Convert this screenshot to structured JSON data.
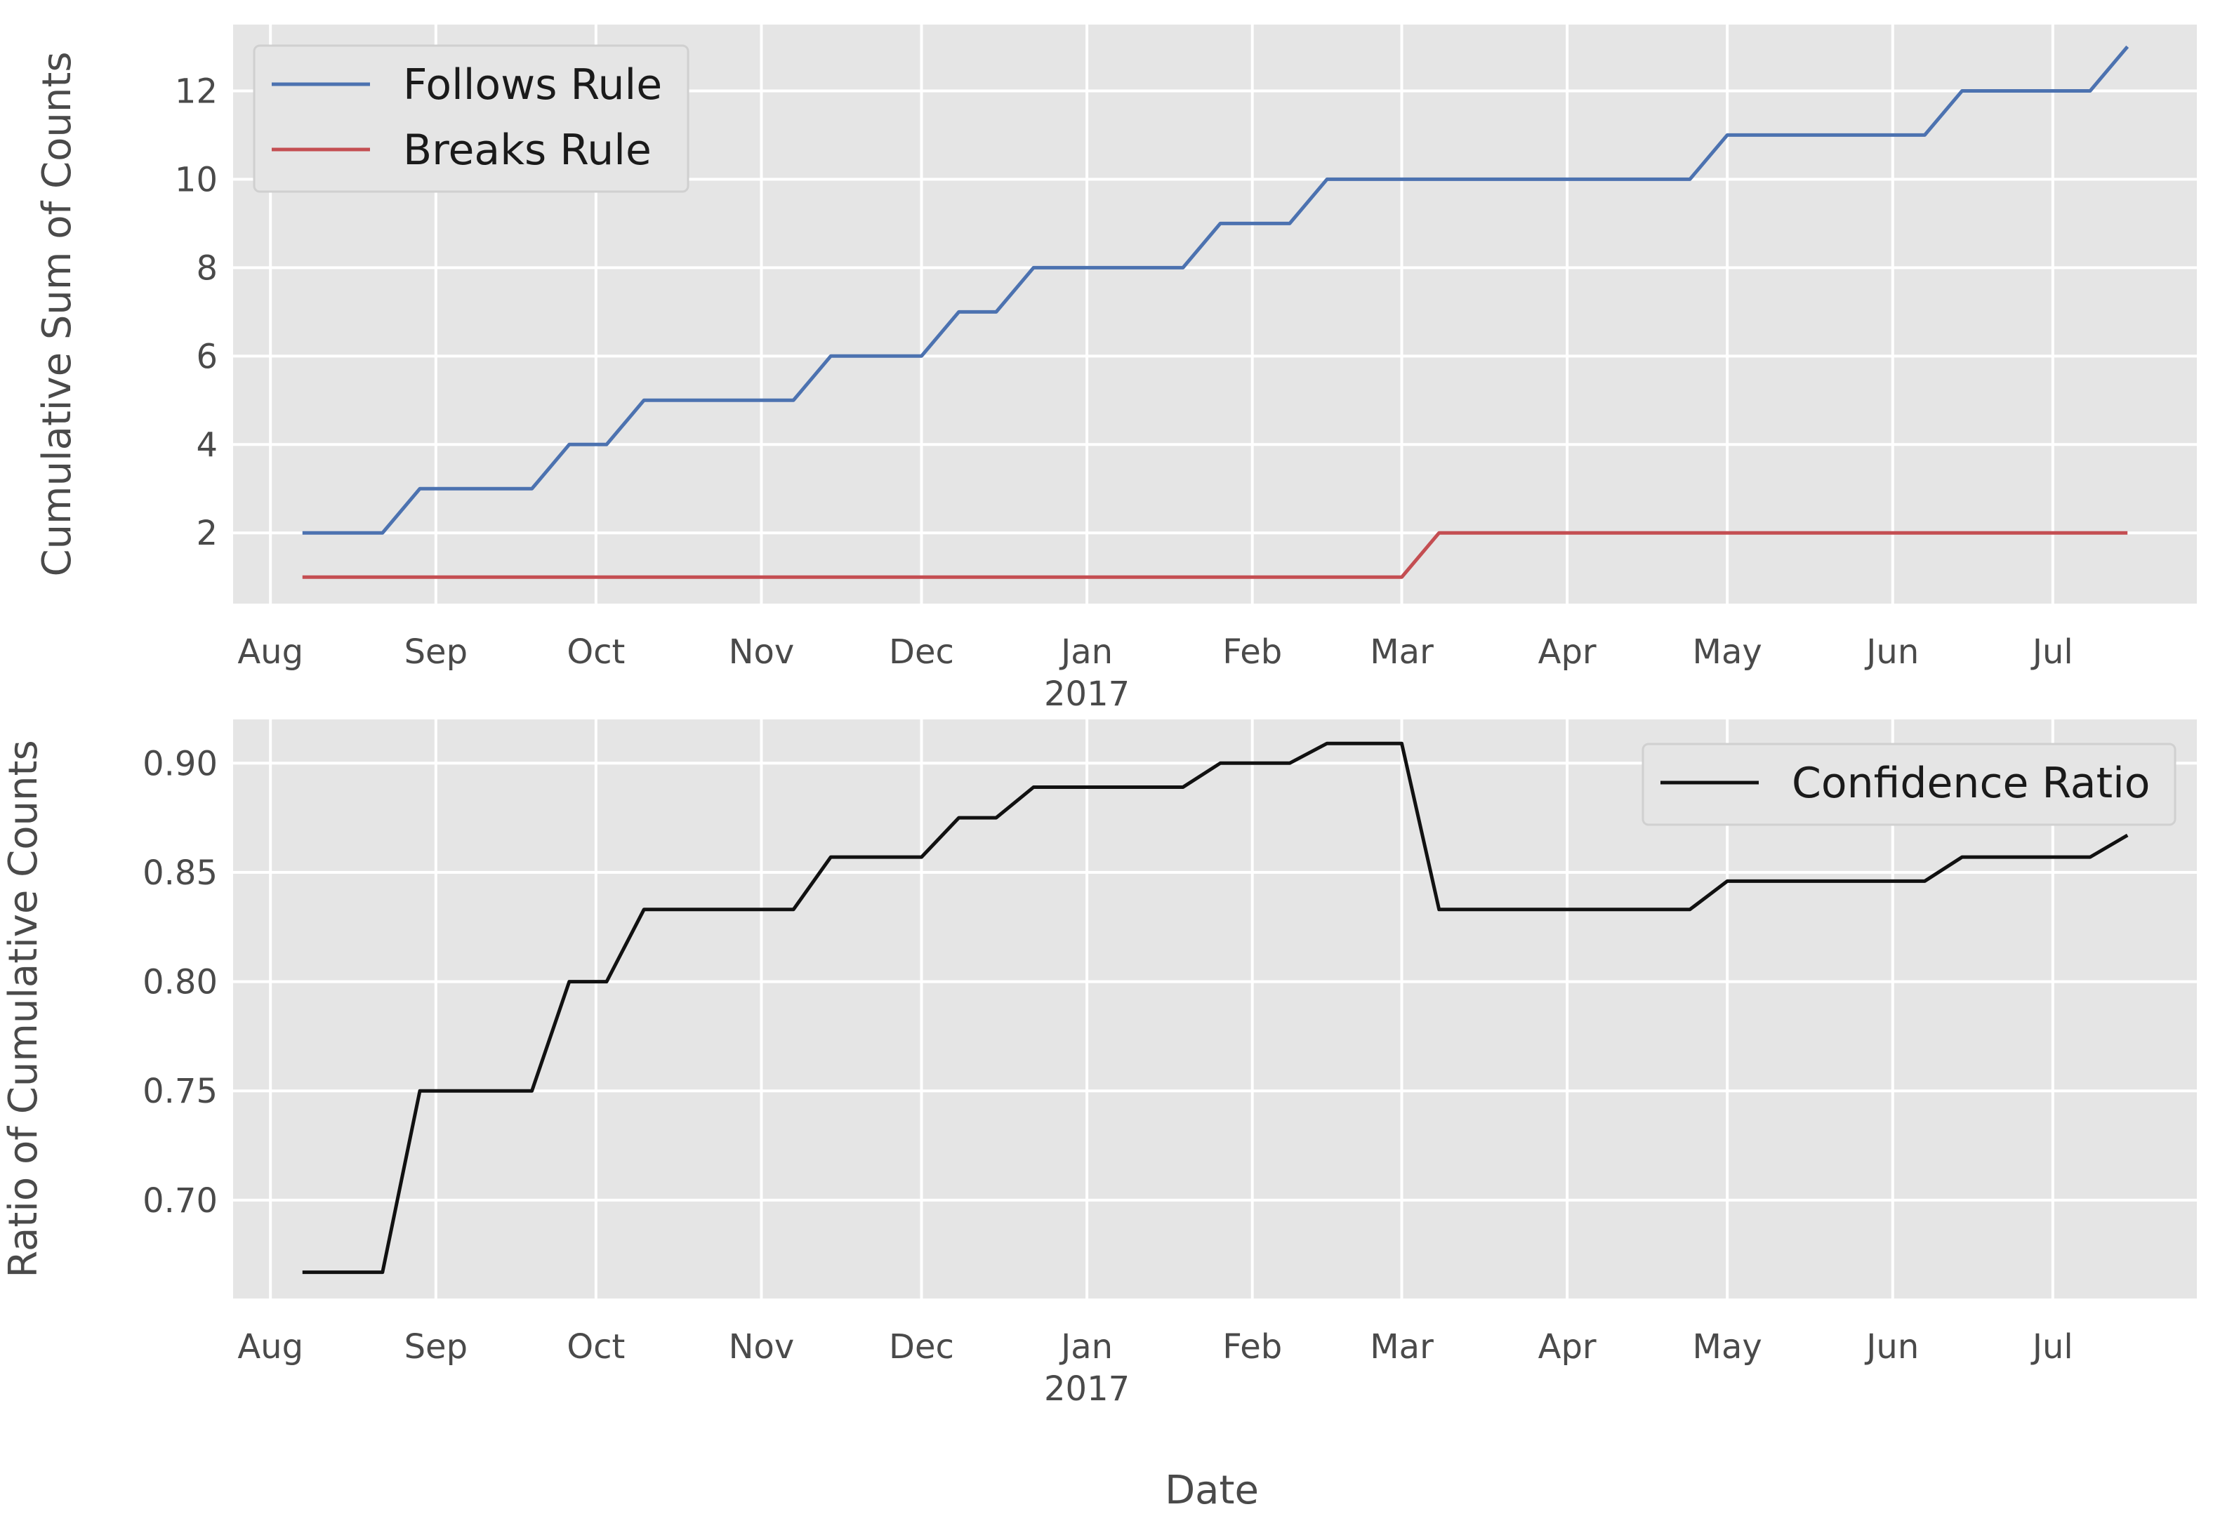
{
  "figure": {
    "xlabel": "Date"
  },
  "chart_data": [
    {
      "type": "line",
      "ylabel": "Cumulative Sum of Counts",
      "x_axis": "date",
      "xlim": [
        "2016-07-25",
        "2017-07-28"
      ],
      "ylim": [
        0.4,
        13.5
      ],
      "x_ticks": [
        {
          "date": "2016-08-01",
          "label": "Aug"
        },
        {
          "date": "2016-09-01",
          "label": "Sep"
        },
        {
          "date": "2016-10-01",
          "label": "Oct"
        },
        {
          "date": "2016-11-01",
          "label": "Nov"
        },
        {
          "date": "2016-12-01",
          "label": "Dec"
        },
        {
          "date": "2017-01-01",
          "label": "Jan"
        },
        {
          "date": "2017-02-01",
          "label": "Feb"
        },
        {
          "date": "2017-03-01",
          "label": "Mar"
        },
        {
          "date": "2017-04-01",
          "label": "Apr"
        },
        {
          "date": "2017-05-01",
          "label": "May"
        },
        {
          "date": "2017-06-01",
          "label": "Jun"
        },
        {
          "date": "2017-07-01",
          "label": "Jul"
        }
      ],
      "x_year_label": {
        "date": "2017-01-01",
        "label": "2017"
      },
      "y_ticks": [
        {
          "value": 2,
          "label": "2"
        },
        {
          "value": 4,
          "label": "4"
        },
        {
          "value": 6,
          "label": "6"
        },
        {
          "value": 8,
          "label": "8"
        },
        {
          "value": 10,
          "label": "10"
        },
        {
          "value": 12,
          "label": "12"
        }
      ],
      "grid": true,
      "legend": {
        "placement": "upper left"
      },
      "series": [
        {
          "name": "Follows Rule",
          "color": "#4c72b0",
          "points": [
            [
              "2016-08-07",
              2
            ],
            [
              "2016-08-22",
              2
            ],
            [
              "2016-08-29",
              3
            ],
            [
              "2016-09-19",
              3
            ],
            [
              "2016-09-26",
              4
            ],
            [
              "2016-10-03",
              4
            ],
            [
              "2016-10-10",
              5
            ],
            [
              "2016-11-07",
              5
            ],
            [
              "2016-11-14",
              6
            ],
            [
              "2016-12-01",
              6
            ],
            [
              "2016-12-08",
              7
            ],
            [
              "2016-12-15",
              7
            ],
            [
              "2016-12-22",
              8
            ],
            [
              "2017-01-19",
              8
            ],
            [
              "2017-01-26",
              9
            ],
            [
              "2017-02-08",
              9
            ],
            [
              "2017-02-15",
              10
            ],
            [
              "2017-04-24",
              10
            ],
            [
              "2017-05-01",
              11
            ],
            [
              "2017-06-07",
              11
            ],
            [
              "2017-06-14",
              12
            ],
            [
              "2017-07-08",
              12
            ],
            [
              "2017-07-15",
              13
            ]
          ]
        },
        {
          "name": "Breaks Rule",
          "color": "#c44e52",
          "points": [
            [
              "2016-08-07",
              1
            ],
            [
              "2017-03-01",
              1
            ],
            [
              "2017-03-08",
              2
            ],
            [
              "2017-07-15",
              2
            ]
          ]
        }
      ]
    },
    {
      "type": "line",
      "ylabel": "Ratio of Cumulative Counts",
      "x_axis": "date",
      "xlim": [
        "2016-07-25",
        "2017-07-28"
      ],
      "ylim": [
        0.655,
        0.92
      ],
      "x_ticks": [
        {
          "date": "2016-08-01",
          "label": "Aug"
        },
        {
          "date": "2016-09-01",
          "label": "Sep"
        },
        {
          "date": "2016-10-01",
          "label": "Oct"
        },
        {
          "date": "2016-11-01",
          "label": "Nov"
        },
        {
          "date": "2016-12-01",
          "label": "Dec"
        },
        {
          "date": "2017-01-01",
          "label": "Jan"
        },
        {
          "date": "2017-02-01",
          "label": "Feb"
        },
        {
          "date": "2017-03-01",
          "label": "Mar"
        },
        {
          "date": "2017-04-01",
          "label": "Apr"
        },
        {
          "date": "2017-05-01",
          "label": "May"
        },
        {
          "date": "2017-06-01",
          "label": "Jun"
        },
        {
          "date": "2017-07-01",
          "label": "Jul"
        }
      ],
      "x_year_label": {
        "date": "2017-01-01",
        "label": "2017"
      },
      "y_ticks": [
        {
          "value": 0.7,
          "label": "0.70"
        },
        {
          "value": 0.75,
          "label": "0.75"
        },
        {
          "value": 0.8,
          "label": "0.80"
        },
        {
          "value": 0.85,
          "label": "0.85"
        },
        {
          "value": 0.9,
          "label": "0.90"
        }
      ],
      "grid": true,
      "legend": {
        "placement": "upper right"
      },
      "series": [
        {
          "name": "Confidence Ratio",
          "color": "#111111",
          "points": [
            [
              "2016-08-07",
              0.667
            ],
            [
              "2016-08-22",
              0.667
            ],
            [
              "2016-08-29",
              0.75
            ],
            [
              "2016-09-19",
              0.75
            ],
            [
              "2016-09-26",
              0.8
            ],
            [
              "2016-10-03",
              0.8
            ],
            [
              "2016-10-10",
              0.833
            ],
            [
              "2016-11-07",
              0.833
            ],
            [
              "2016-11-14",
              0.857
            ],
            [
              "2016-12-01",
              0.857
            ],
            [
              "2016-12-08",
              0.875
            ],
            [
              "2016-12-15",
              0.875
            ],
            [
              "2016-12-22",
              0.889
            ],
            [
              "2017-01-19",
              0.889
            ],
            [
              "2017-01-26",
              0.9
            ],
            [
              "2017-02-08",
              0.9
            ],
            [
              "2017-02-15",
              0.909
            ],
            [
              "2017-03-01",
              0.909
            ],
            [
              "2017-03-08",
              0.833
            ],
            [
              "2017-04-24",
              0.833
            ],
            [
              "2017-05-01",
              0.846
            ],
            [
              "2017-06-07",
              0.846
            ],
            [
              "2017-06-14",
              0.857
            ],
            [
              "2017-07-08",
              0.857
            ],
            [
              "2017-07-15",
              0.867
            ]
          ]
        }
      ]
    }
  ]
}
